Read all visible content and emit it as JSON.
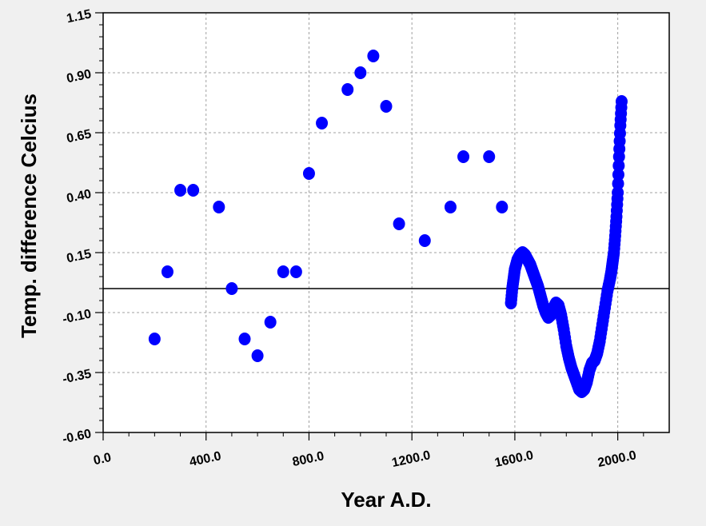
{
  "chart_data": {
    "type": "scatter",
    "title": "",
    "xlabel": "Year A.D.",
    "ylabel": "Temp. difference Celcius",
    "xlim": [
      0,
      2200
    ],
    "ylim": [
      -0.6,
      1.15
    ],
    "x_ticks": [
      0,
      400,
      800,
      1200,
      1600,
      2000
    ],
    "x_tick_labels": [
      "0.0",
      "400.0",
      "800.0",
      "1200.0",
      "1600.0",
      "2000.0"
    ],
    "y_ticks": [
      -0.6,
      -0.35,
      -0.1,
      0.15,
      0.4,
      0.65,
      0.9,
      1.15
    ],
    "y_tick_labels": [
      "-0.60",
      "-0.35",
      "-0.10",
      "0.15",
      "0.40",
      "0.65",
      "0.90",
      "1.15"
    ],
    "grid": true,
    "reference_line_y": 0.0,
    "marker_color": "#0000ff",
    "series": [
      {
        "points": [
          [
            200,
            -0.21
          ],
          [
            250,
            0.07
          ],
          [
            300,
            0.41
          ],
          [
            350,
            0.41
          ],
          [
            450,
            0.34
          ],
          [
            500,
            0.0
          ],
          [
            550,
            -0.21
          ],
          [
            600,
            -0.28
          ],
          [
            650,
            -0.14
          ],
          [
            700,
            0.07
          ],
          [
            750,
            0.07
          ],
          [
            800,
            0.48
          ],
          [
            850,
            0.69
          ],
          [
            950,
            0.83
          ],
          [
            1000,
            0.9
          ],
          [
            1050,
            0.97
          ],
          [
            1100,
            0.76
          ],
          [
            1150,
            0.27
          ],
          [
            1250,
            0.2
          ],
          [
            1350,
            0.34
          ],
          [
            1400,
            0.55
          ],
          [
            1500,
            0.55
          ],
          [
            1550,
            0.34
          ],
          [
            1585,
            -0.06
          ],
          [
            1590,
            0.0
          ],
          [
            1595,
            0.04
          ],
          [
            1600,
            0.08
          ],
          [
            1610,
            0.12
          ],
          [
            1620,
            0.14
          ],
          [
            1630,
            0.15
          ],
          [
            1640,
            0.14
          ],
          [
            1650,
            0.12
          ],
          [
            1660,
            0.1
          ],
          [
            1670,
            0.07
          ],
          [
            1680,
            0.04
          ],
          [
            1690,
            0.01
          ],
          [
            1700,
            -0.03
          ],
          [
            1710,
            -0.07
          ],
          [
            1720,
            -0.1
          ],
          [
            1730,
            -0.12
          ],
          [
            1740,
            -0.11
          ],
          [
            1750,
            -0.08
          ],
          [
            1760,
            -0.06
          ],
          [
            1770,
            -0.07
          ],
          [
            1780,
            -0.11
          ],
          [
            1790,
            -0.17
          ],
          [
            1800,
            -0.24
          ],
          [
            1810,
            -0.29
          ],
          [
            1820,
            -0.33
          ],
          [
            1830,
            -0.36
          ],
          [
            1840,
            -0.39
          ],
          [
            1850,
            -0.42
          ],
          [
            1860,
            -0.43
          ],
          [
            1870,
            -0.42
          ],
          [
            1880,
            -0.39
          ],
          [
            1890,
            -0.34
          ],
          [
            1900,
            -0.31
          ],
          [
            1910,
            -0.3
          ],
          [
            1920,
            -0.27
          ],
          [
            1930,
            -0.22
          ],
          [
            1940,
            -0.15
          ],
          [
            1950,
            -0.08
          ],
          [
            1960,
            -0.01
          ],
          [
            1970,
            0.04
          ],
          [
            1975,
            0.07
          ],
          [
            1980,
            0.11
          ],
          [
            1985,
            0.15
          ],
          [
            1990,
            0.22
          ],
          [
            1995,
            0.3
          ],
          [
            2000,
            0.4
          ],
          [
            2005,
            0.55
          ],
          [
            2010,
            0.68
          ],
          [
            2015,
            0.78
          ]
        ]
      }
    ]
  }
}
